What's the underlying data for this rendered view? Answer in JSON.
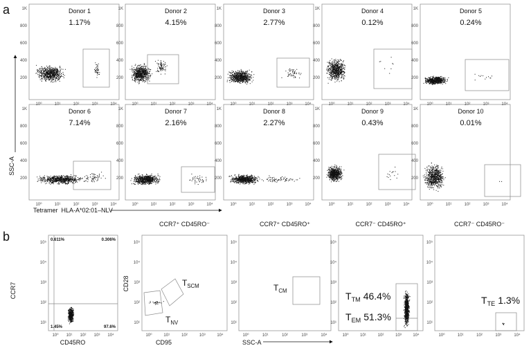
{
  "panel_a": {
    "label": "a",
    "donors": [
      {
        "name": "Donor 1",
        "percent": "1.17%"
      },
      {
        "name": "Donor 2",
        "percent": "4.15%"
      },
      {
        "name": "Donor 3",
        "percent": "2.77%"
      },
      {
        "name": "Donor 4",
        "percent": "0.12%"
      },
      {
        "name": "Donor 5",
        "percent": "0.24%"
      },
      {
        "name": "Donor 6",
        "percent": "7.14%"
      },
      {
        "name": "Donor 7",
        "percent": "2.16%"
      },
      {
        "name": "Donor 8",
        "percent": "2.27%"
      },
      {
        "name": "Donor 9",
        "percent": "0.43%"
      },
      {
        "name": "Donor 10",
        "percent": "0.01%"
      }
    ],
    "y_ticks": [
      "1K",
      "800",
      "600",
      "400",
      "200"
    ],
    "x_ticks": [
      "10⁰",
      "10¹",
      "10²",
      "10³",
      "10⁴"
    ],
    "y_axis": "SSC-A",
    "x_axis": "Tetramer  HLA-A*02:01–NLV"
  },
  "panel_b": {
    "label": "b",
    "y_ticks": [
      "10⁵",
      "10⁴",
      "10³",
      "10²",
      "10¹"
    ],
    "x_ticks": [
      "10⁰",
      "10¹",
      "10²",
      "10³",
      "10⁴"
    ],
    "quadrant_plot": {
      "y_axis": "CCR7",
      "x_axis": "CD45RO",
      "quadrants": [
        "0.611%",
        "0.306%",
        "1.45%",
        "97.6%"
      ]
    },
    "subsets": [
      {
        "title": "CCR7⁺ CD45RO⁻",
        "y_axis": "CD28",
        "x_axis": "CD95",
        "gates": [
          {
            "main": "T",
            "sub": "SCM"
          },
          {
            "main": "T",
            "sub": "NV"
          }
        ]
      },
      {
        "title": "CCR7⁺ CD45RO⁺",
        "x_axis": "SSC-A",
        "gates": [
          {
            "main": "T",
            "sub": "CM"
          }
        ]
      },
      {
        "title": "CCR7⁻ CD45RO⁺",
        "gates": [
          {
            "main": "T",
            "sub": "TM",
            "value": "46.4%"
          },
          {
            "main": "T",
            "sub": "EM",
            "value": "51.3%"
          }
        ]
      },
      {
        "title": "CCR7⁻ CD45RO⁻",
        "gates": [
          {
            "main": "T",
            "sub": "TE",
            "value": "1.3%"
          }
        ]
      }
    ]
  }
}
